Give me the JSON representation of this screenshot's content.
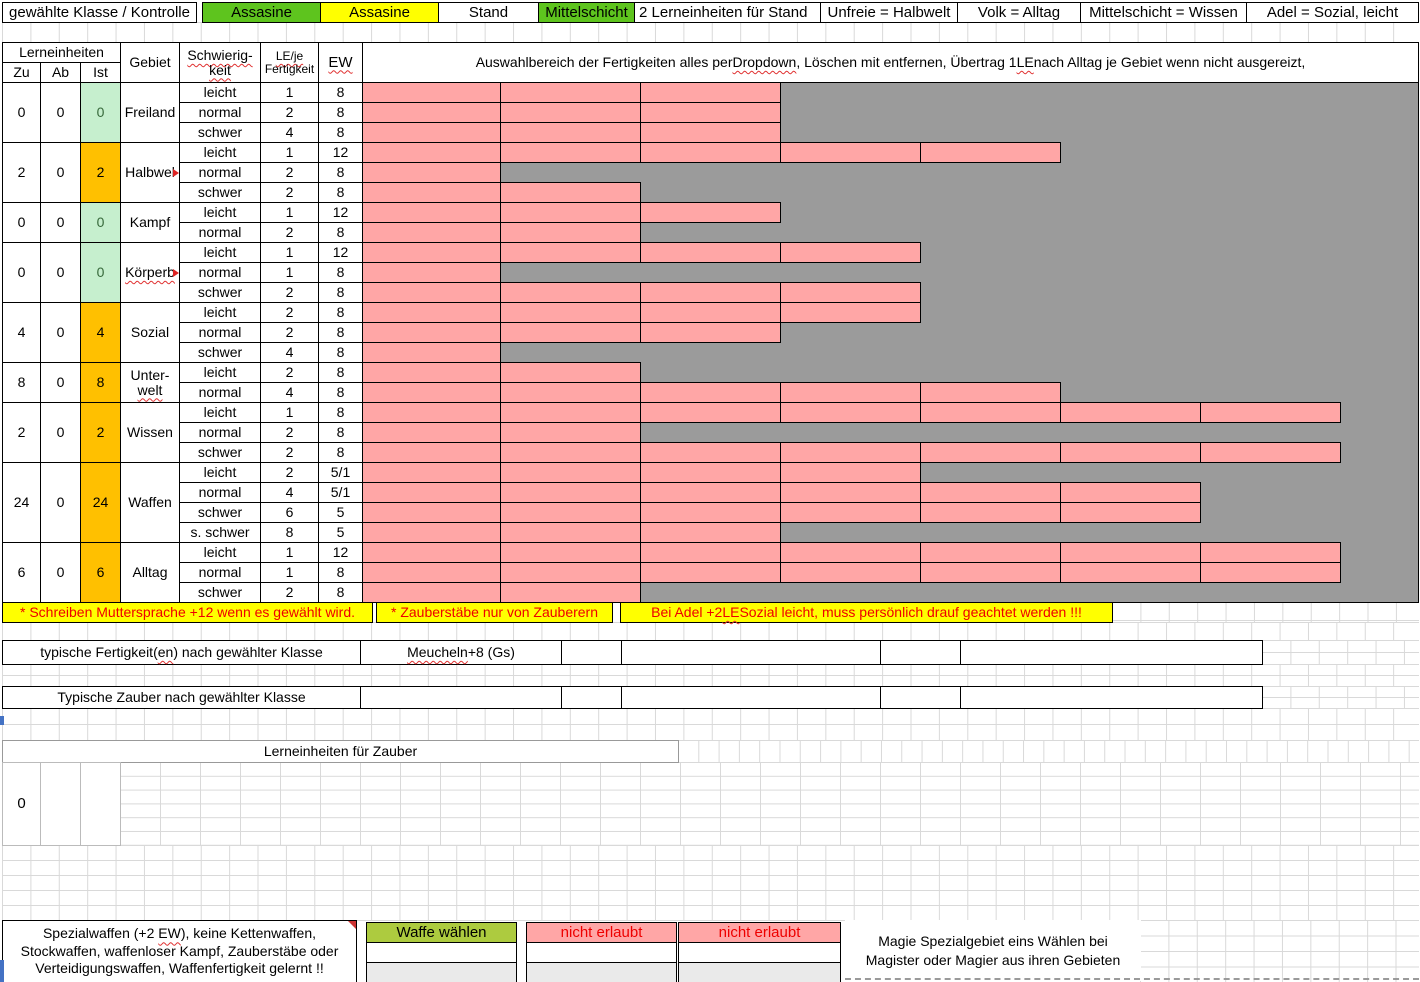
{
  "colors": {
    "green": "#5EC41E",
    "yellow": "#FFFF00",
    "pale_green": "#C6EFCE",
    "pale_green_text": "#37693B",
    "orange": "#FFC000",
    "pink": "#FFA6A6",
    "gray": "#9B9B9B",
    "red_text": "#EE0000",
    "waffe_green": "#ADCB3F",
    "cell_gray": "#EAEAEA"
  },
  "top_bar": {
    "cells": [
      {
        "text": "gewählte Klasse / Kontrolle",
        "bg": "white",
        "name": "selected-class-header",
        "interactable": false
      },
      {
        "text": "Assasine",
        "bg": "green",
        "name": "class-select",
        "interactable": true
      },
      {
        "text": "Assasine",
        "bg": "yellow",
        "name": "class-control-value",
        "interactable": false
      },
      {
        "text": "Stand",
        "bg": "white",
        "name": "stand-header",
        "interactable": false
      },
      {
        "text": "Mittelschicht",
        "bg": "green",
        "name": "stand-select",
        "interactable": true
      },
      {
        "text": "2 Lerneinheiten für Stand",
        "bg": "white",
        "align": "left",
        "name": "stand-le-info",
        "interactable": false
      },
      {
        "text": "Unfreie = Halbwelt",
        "bg": "white",
        "name": "legend-unfreie",
        "interactable": false
      },
      {
        "text": "Volk = Alltag",
        "bg": "white",
        "name": "legend-volk",
        "interactable": false
      },
      {
        "text": "Mittelschicht = Wissen",
        "bg": "white",
        "name": "legend-mittelschicht",
        "interactable": false
      },
      {
        "text": "Adel = Sozial, leicht",
        "bg": "white",
        "name": "legend-adel",
        "interactable": false
      }
    ]
  },
  "table": {
    "header": {
      "lerneinheiten": "Lerneinheiten",
      "zu": "Zu",
      "ab": "Ab",
      "ist": "Ist",
      "gebiet": "Gebiet",
      "schwierigkeit_l1": "Schwierig-",
      "schwierigkeit_l2": "keit",
      "le_l1": "LE/je",
      "le_l2": "Fertigkeit",
      "ew": "EW",
      "auswahl_segments": [
        "Auswahlbereich der Fertigkeiten alles per ",
        {
          "w": "Dropdown"
        },
        ", Löschen mit entfernen, Übertrag 1 ",
        {
          "w": "LE"
        },
        " nach Alltag je Gebiet wenn nicht ausgereizt,"
      ]
    },
    "groups": [
      {
        "zu": "0",
        "ab": "0",
        "ist": "0",
        "ist_state": "zero",
        "gebiet": {
          "text": "Freiland"
        },
        "rows": [
          {
            "diff": "leicht",
            "le": "1",
            "ew": "8",
            "slots": 3
          },
          {
            "diff": "normal",
            "le": "2",
            "ew": "8",
            "slots": 3
          },
          {
            "diff": "schwer",
            "le": "4",
            "ew": "8",
            "slots": 3
          }
        ]
      },
      {
        "zu": "2",
        "ab": "0",
        "ist": "2",
        "ist_state": "pos",
        "gebiet": {
          "text": "Halbwel",
          "marker": true
        },
        "rows": [
          {
            "diff": "leicht",
            "le": "1",
            "ew": "12",
            "slots": 5
          },
          {
            "diff": "normal",
            "le": "2",
            "ew": "8",
            "slots": 1
          },
          {
            "diff": "schwer",
            "le": "2",
            "ew": "8",
            "slots": 2
          }
        ]
      },
      {
        "zu": "0",
        "ab": "0",
        "ist": "0",
        "ist_state": "zero",
        "gebiet": {
          "text": "Kampf"
        },
        "rows": [
          {
            "diff": "leicht",
            "le": "1",
            "ew": "12",
            "slots": 3
          },
          {
            "diff": "normal",
            "le": "2",
            "ew": "8",
            "slots": 2
          }
        ]
      },
      {
        "zu": "0",
        "ab": "0",
        "ist": "0",
        "ist_state": "zero",
        "gebiet": {
          "text": "Körperb",
          "marker": true,
          "squiggle": true
        },
        "rows": [
          {
            "diff": "leicht",
            "le": "1",
            "ew": "12",
            "slots": 4
          },
          {
            "diff": "normal",
            "le": "1",
            "ew": "8",
            "slots": 1
          },
          {
            "diff": "schwer",
            "le": "2",
            "ew": "8",
            "slots": 4
          }
        ]
      },
      {
        "zu": "4",
        "ab": "0",
        "ist": "4",
        "ist_state": "pos",
        "gebiet": {
          "text": "Sozial"
        },
        "rows": [
          {
            "diff": "leicht",
            "le": "2",
            "ew": "8",
            "slots": 4
          },
          {
            "diff": "normal",
            "le": "2",
            "ew": "8",
            "slots": 3
          },
          {
            "diff": "schwer",
            "le": "4",
            "ew": "8",
            "slots": 1
          }
        ]
      },
      {
        "zu": "8",
        "ab": "0",
        "ist": "8",
        "ist_state": "pos",
        "gebiet": {
          "lines": [
            "Unter-",
            "welt"
          ],
          "squiggle_line2": true
        },
        "rows": [
          {
            "diff": "leicht",
            "le": "2",
            "ew": "8",
            "slots": 2
          },
          {
            "diff": "normal",
            "le": "4",
            "ew": "8",
            "slots": 5
          }
        ]
      },
      {
        "zu": "2",
        "ab": "0",
        "ist": "2",
        "ist_state": "pos",
        "gebiet": {
          "text": "Wissen"
        },
        "rows": [
          {
            "diff": "leicht",
            "le": "1",
            "ew": "8",
            "slots": 7
          },
          {
            "diff": "normal",
            "le": "2",
            "ew": "8",
            "slots": 2
          },
          {
            "diff": "schwer",
            "le": "2",
            "ew": "8",
            "slots": 7
          }
        ]
      },
      {
        "zu": "24",
        "ab": "0",
        "ist": "24",
        "ist_state": "pos",
        "gebiet": {
          "text": "Waffen"
        },
        "rows": [
          {
            "diff": "leicht",
            "le": "2",
            "ew": "5/1",
            "slots": 4
          },
          {
            "diff": "normal",
            "le": "4",
            "ew": "5/1",
            "slots": 6
          },
          {
            "diff": "schwer",
            "le": "6",
            "ew": "5",
            "slots": 6
          },
          {
            "diff": "s. schwer",
            "le": "8",
            "ew": "5",
            "slots": 3
          }
        ]
      },
      {
        "zu": "6",
        "ab": "0",
        "ist": "6",
        "ist_state": "pos",
        "gebiet": {
          "text": "Alltag"
        },
        "rows": [
          {
            "diff": "leicht",
            "le": "1",
            "ew": "12",
            "slots": 7
          },
          {
            "diff": "normal",
            "le": "1",
            "ew": "8",
            "slots": 7
          },
          {
            "diff": "schwer",
            "le": "2",
            "ew": "8",
            "slots": 2
          }
        ]
      }
    ]
  },
  "notes": [
    {
      "segments": [
        "* Schreiben Muttersprache +12 wenn es gewählt wird."
      ]
    },
    {
      "segments": [
        "* Zauberstäbe nur von Zauberern"
      ]
    },
    {
      "segments": [
        "Bei Adel +2 ",
        {
          "w": "LE"
        },
        " Sozial leicht, muss persönlich drauf geachtet werden !!!"
      ]
    }
  ],
  "typical_skills": {
    "label_segments": [
      "typische Fertigkeit(",
      {
        "w": "en"
      },
      ") nach gewählter Klasse"
    ],
    "value_segments": [
      {
        "w": "Meucheln"
      },
      " +8 (Gs)"
    ]
  },
  "typical_spells": {
    "label": "Typische Zauber nach gewählter Klasse"
  },
  "zauber": {
    "title": "Lerneinheiten für Zauber",
    "value": "0"
  },
  "bottom": {
    "spezial_lines": [
      [
        "Spezialwaffen (+2 ",
        {
          "w": "EW"
        },
        "), keine Kettenwaffen,"
      ],
      [
        "Stockwaffen, waffenloser Kampf, Zauberstäbe oder"
      ],
      [
        "Verteidigungswaffen, Waffenfertigkeit gelernt !!"
      ]
    ],
    "waffe_waehlen": "Waffe wählen",
    "nicht_erlaubt": "nicht erlaubt",
    "magie_lines": [
      "Magie Spezialgebiet eins Wählen bei",
      "Magister oder Magier aus ihren Gebieten"
    ]
  }
}
